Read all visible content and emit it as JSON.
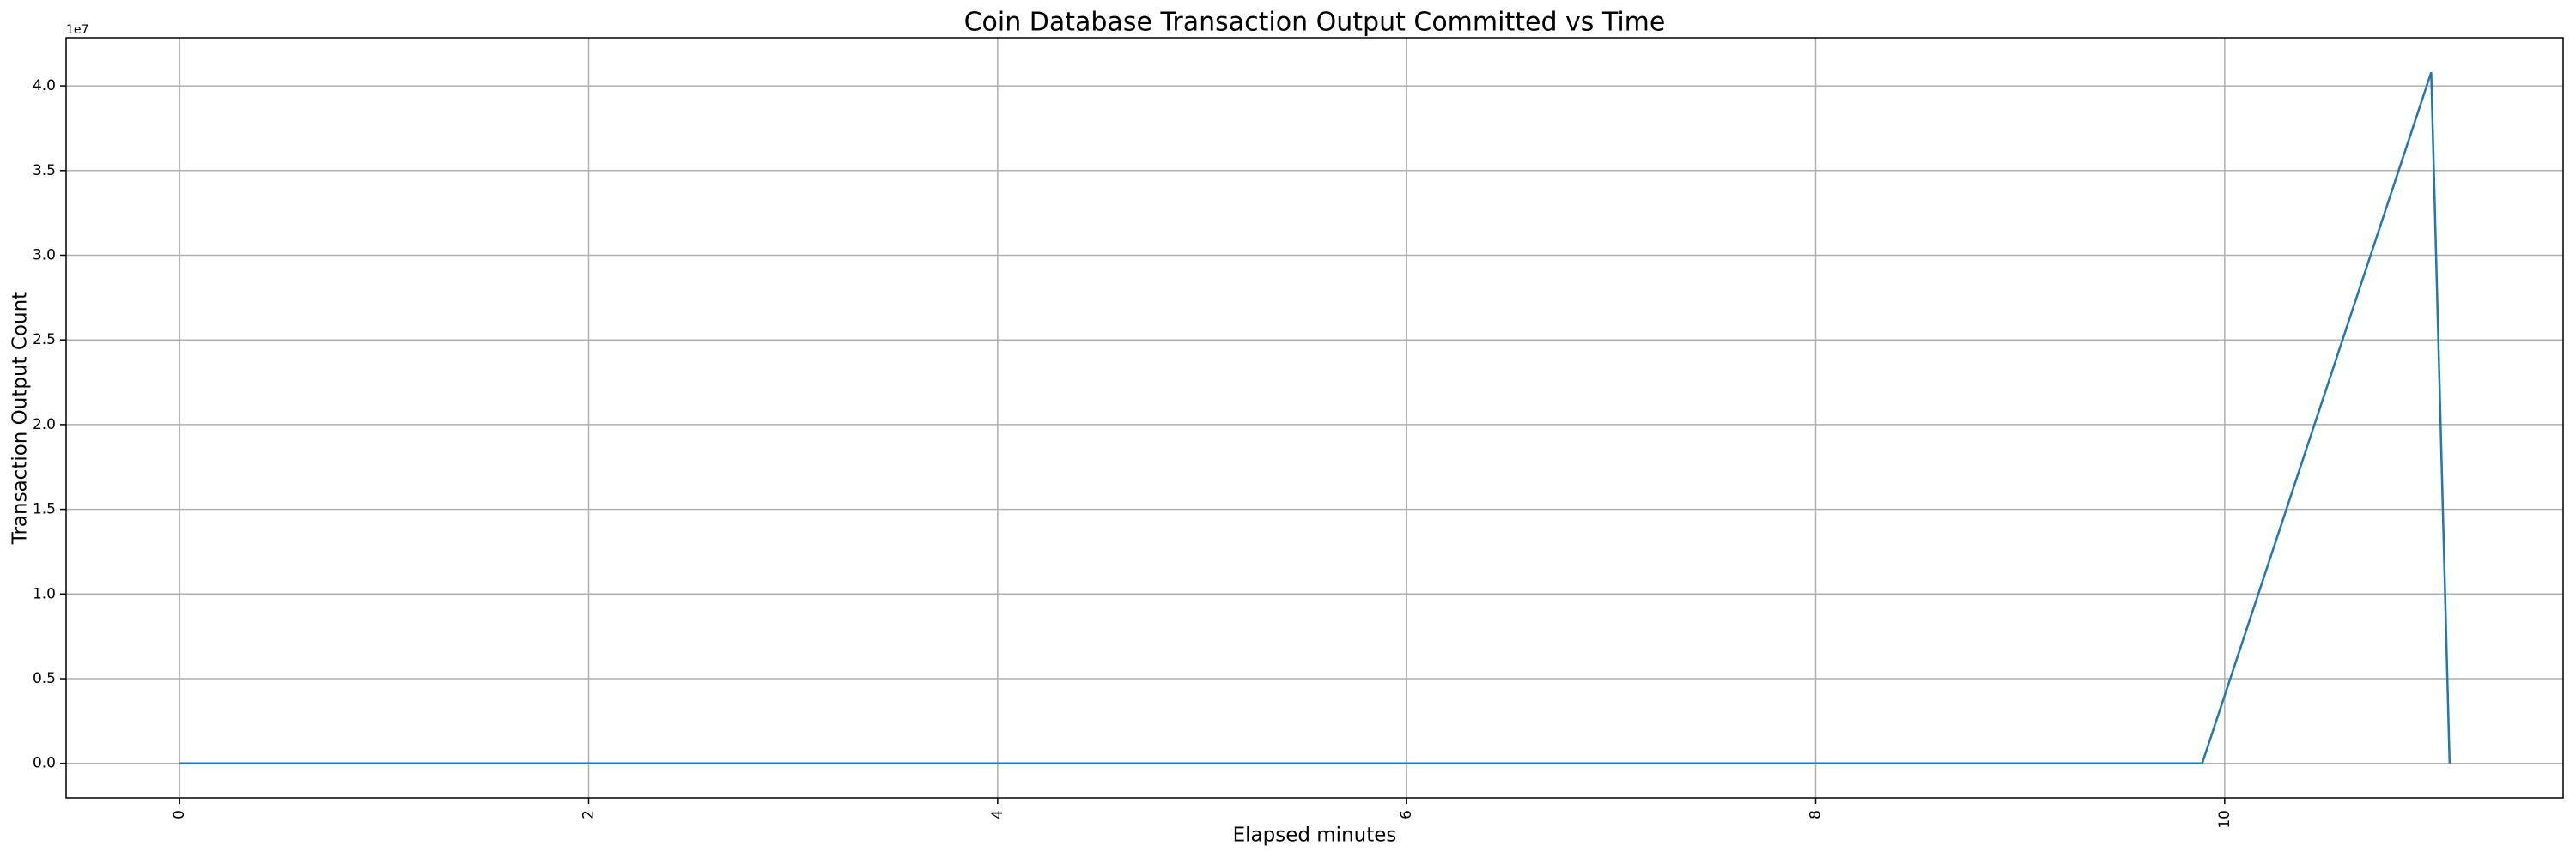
{
  "chart_data": {
    "type": "line",
    "title": "Coin Database Transaction Output Committed vs Time",
    "x_label": "Elapsed minutes",
    "y_label": "Transaction Output Count",
    "y_offset_label": "1e7",
    "x": [
      0,
      9.89,
      11.01,
      11.1
    ],
    "series": [
      {
        "color": "#1f77b4",
        "values": [
          0,
          0,
          40800000,
          0
        ]
      }
    ],
    "xlim": [
      -0.555,
      11.655
    ],
    "xticks": [
      0,
      2,
      4,
      6,
      8,
      10
    ],
    "ylim": [
      -2040000,
      42840000
    ],
    "yticks": [
      {
        "value": 0,
        "label": "0.0"
      },
      {
        "value": 5000000,
        "label": "0.5"
      },
      {
        "value": 10000000,
        "label": "1.0"
      },
      {
        "value": 15000000,
        "label": "1.5"
      },
      {
        "value": 20000000,
        "label": "2.0"
      },
      {
        "value": 25000000,
        "label": "2.5"
      },
      {
        "value": 30000000,
        "label": "3.0"
      },
      {
        "value": 35000000,
        "label": "3.5"
      },
      {
        "value": 40000000,
        "label": "4.0"
      }
    ],
    "grid": true
  }
}
